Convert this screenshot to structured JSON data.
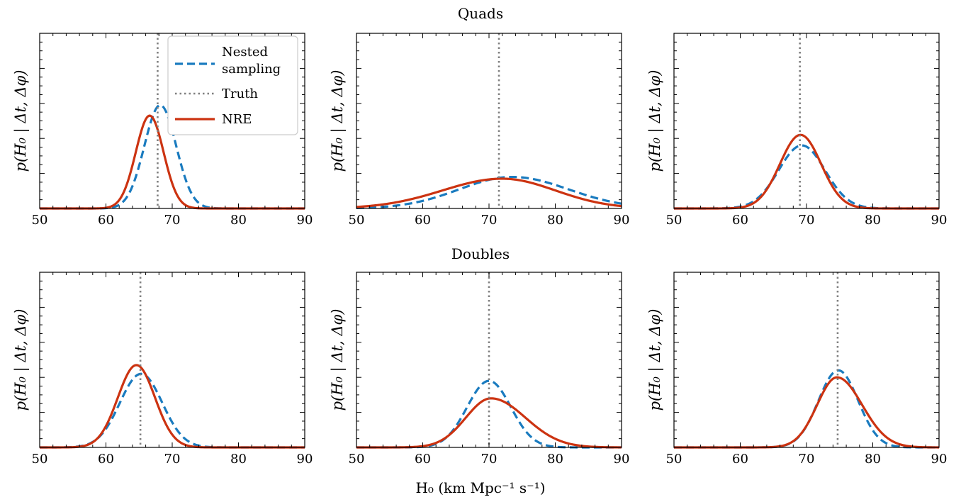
{
  "figure": {
    "row_titles": [
      "Quads",
      "Doubles"
    ],
    "ylabel": "p(H₀ | Δt, Δφ)",
    "xlabel": "H₀ (km Mpc⁻¹ s⁻¹)",
    "legend": {
      "entries": [
        {
          "series": "nested",
          "lines": [
            "Nested",
            "sampling"
          ]
        },
        {
          "series": "truth",
          "lines": [
            "Truth"
          ]
        },
        {
          "series": "nre",
          "lines": [
            "NRE"
          ]
        }
      ]
    }
  },
  "colors": {
    "nested": "#1a7bbf",
    "truth": "#808080",
    "nre": "#cc3311",
    "axis": "#000000",
    "background": "#ffffff"
  },
  "chart_data": [
    {
      "type": "line",
      "panel": "Quads-1",
      "xlim": [
        50,
        90
      ],
      "ylim": [
        0,
        1
      ],
      "xticks": [
        50,
        60,
        70,
        80,
        90
      ],
      "truth": 67.8,
      "legend": true,
      "series": [
        {
          "name": "Nested sampling",
          "style": "dashed",
          "kind": "gaussian",
          "mu": 68.2,
          "sigma": 2.4,
          "peak": 0.59,
          "x_range": [
            50,
            90
          ]
        },
        {
          "name": "NRE",
          "style": "solid",
          "kind": "gaussian",
          "mu": 66.6,
          "sigma": 2.1,
          "peak": 0.53,
          "x_range": [
            50,
            90
          ]
        }
      ]
    },
    {
      "type": "line",
      "panel": "Quads-2",
      "xlim": [
        50,
        90
      ],
      "ylim": [
        0,
        1
      ],
      "xticks": [
        50,
        60,
        70,
        80,
        90
      ],
      "truth": 71.5,
      "legend": false,
      "series": [
        {
          "name": "Nested sampling",
          "style": "dashed",
          "kind": "skew",
          "mu": 73.5,
          "sl": 8.0,
          "sr": 8.5,
          "peak": 0.18,
          "x_range": [
            50,
            90
          ]
        },
        {
          "name": "NRE",
          "style": "solid",
          "kind": "skew",
          "mu": 72.0,
          "sl": 9.0,
          "sr": 8.0,
          "peak": 0.17,
          "x_range": [
            50,
            90
          ]
        }
      ]
    },
    {
      "type": "line",
      "panel": "Quads-3",
      "xlim": [
        50,
        90
      ],
      "ylim": [
        0,
        1
      ],
      "xticks": [
        50,
        60,
        70,
        80,
        90
      ],
      "truth": 69.0,
      "legend": false,
      "series": [
        {
          "name": "Nested sampling",
          "style": "dashed",
          "kind": "gaussian",
          "mu": 69.3,
          "sigma": 3.5,
          "peak": 0.36,
          "x_range": [
            50,
            90
          ]
        },
        {
          "name": "NRE",
          "style": "solid",
          "kind": "gaussian",
          "mu": 69.1,
          "sigma": 3.1,
          "peak": 0.42,
          "x_range": [
            50,
            90
          ]
        }
      ]
    },
    {
      "type": "line",
      "panel": "Doubles-1",
      "xlim": [
        50,
        90
      ],
      "ylim": [
        0,
        1
      ],
      "xticks": [
        50,
        60,
        70,
        80,
        90
      ],
      "truth": 65.2,
      "legend": false,
      "series": [
        {
          "name": "Nested sampling",
          "style": "dashed",
          "kind": "gaussian",
          "mu": 65.3,
          "sigma": 3.2,
          "peak": 0.42,
          "x_range": [
            50,
            90
          ]
        },
        {
          "name": "NRE",
          "style": "solid",
          "kind": "gaussian",
          "mu": 64.6,
          "sigma": 2.8,
          "peak": 0.47,
          "x_range": [
            50,
            90
          ]
        }
      ]
    },
    {
      "type": "line",
      "panel": "Doubles-2",
      "xlim": [
        50,
        90
      ],
      "ylim": [
        0,
        1
      ],
      "xticks": [
        50,
        60,
        70,
        80,
        90
      ],
      "truth": 70.0,
      "legend": false,
      "series": [
        {
          "name": "Nested sampling",
          "style": "dashed",
          "kind": "gaussian",
          "mu": 70.0,
          "sigma": 3.3,
          "peak": 0.38,
          "x_range": [
            50,
            90
          ]
        },
        {
          "name": "NRE",
          "style": "solid",
          "kind": "skew",
          "mu": 70.3,
          "sl": 3.8,
          "sr": 5.2,
          "peak": 0.28,
          "x_range": [
            50,
            90
          ]
        }
      ]
    },
    {
      "type": "line",
      "panel": "Doubles-3",
      "xlim": [
        50,
        90
      ],
      "ylim": [
        0,
        1
      ],
      "xticks": [
        50,
        60,
        70,
        80,
        90
      ],
      "truth": 74.7,
      "legend": false,
      "series": [
        {
          "name": "Nested sampling",
          "style": "dashed",
          "kind": "gaussian",
          "mu": 74.8,
          "sigma": 3.0,
          "peak": 0.44,
          "x_range": [
            50,
            90
          ]
        },
        {
          "name": "NRE",
          "style": "solid",
          "kind": "skew",
          "mu": 74.6,
          "sl": 3.0,
          "sr": 3.8,
          "peak": 0.4,
          "x_range": [
            50,
            90
          ]
        }
      ]
    }
  ]
}
